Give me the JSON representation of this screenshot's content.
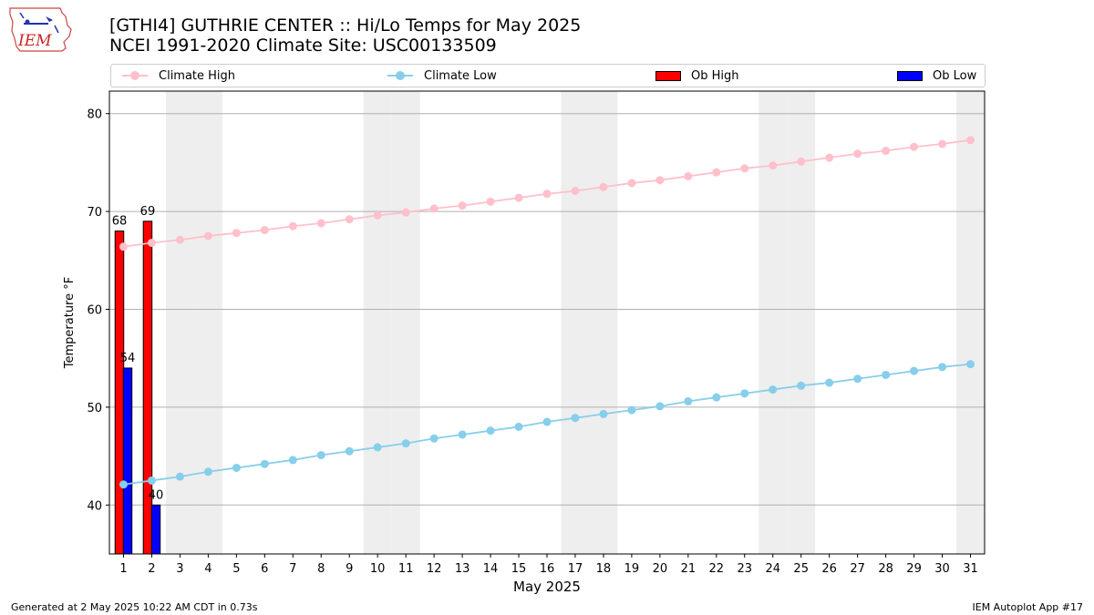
{
  "header": {
    "title_line1": "[GTHI4] GUTHRIE CENTER :: Hi/Lo Temps for May 2025",
    "title_line2": "NCEI 1991-2020 Climate Site: USC00133509"
  },
  "logo": {
    "text": "IEM"
  },
  "footer": {
    "left": "Generated at 2 May 2025 10:22 AM CDT in 0.73s",
    "right": "IEM Autoplot App #17"
  },
  "colors": {
    "climate_high": "#ffc0cb",
    "climate_low": "#87ceeb",
    "ob_high": "#ff0000",
    "ob_low": "#0000ff",
    "weekend_band": "#eeeeee",
    "grid": "#b0b0b0"
  },
  "chart_data": {
    "type": "bar",
    "title": "[GTHI4] GUTHRIE CENTER :: Hi/Lo Temps for May 2025",
    "subtitle": "NCEI 1991-2020 Climate Site: USC00133509",
    "xlabel": "May 2025",
    "ylabel": "Temperature °F",
    "xlim": [
      0.5,
      31.5
    ],
    "ylim": [
      35,
      82.3
    ],
    "yticks": [
      40,
      50,
      60,
      70,
      80
    ],
    "grid": "horizontal",
    "legend_position": "top",
    "days": [
      1,
      2,
      3,
      4,
      5,
      6,
      7,
      8,
      9,
      10,
      11,
      12,
      13,
      14,
      15,
      16,
      17,
      18,
      19,
      20,
      21,
      22,
      23,
      24,
      25,
      26,
      27,
      28,
      29,
      30,
      31
    ],
    "weekend_days": [
      3,
      4,
      10,
      11,
      17,
      18,
      24,
      25,
      31
    ],
    "series": [
      {
        "name": "Climate High",
        "kind": "line",
        "color": "#ffc0cb",
        "values": [
          66.4,
          66.8,
          67.1,
          67.5,
          67.8,
          68.1,
          68.5,
          68.8,
          69.2,
          69.6,
          69.9,
          70.3,
          70.6,
          71.0,
          71.4,
          71.8,
          72.1,
          72.5,
          72.9,
          73.2,
          73.6,
          74.0,
          74.4,
          74.7,
          75.1,
          75.5,
          75.9,
          76.2,
          76.6,
          76.9,
          77.3
        ]
      },
      {
        "name": "Climate Low",
        "kind": "line",
        "color": "#87ceeb",
        "values": [
          42.1,
          42.5,
          42.9,
          43.4,
          43.8,
          44.2,
          44.6,
          45.1,
          45.5,
          45.9,
          46.3,
          46.8,
          47.2,
          47.6,
          48.0,
          48.5,
          48.9,
          49.3,
          49.7,
          50.1,
          50.6,
          51.0,
          51.4,
          51.8,
          52.2,
          52.5,
          52.9,
          53.3,
          53.7,
          54.1,
          54.4
        ]
      },
      {
        "name": "Ob High",
        "kind": "bar",
        "color": "#ff0000",
        "values": [
          68,
          69
        ]
      },
      {
        "name": "Ob Low",
        "kind": "bar",
        "color": "#0000ff",
        "values": [
          54,
          40
        ]
      }
    ],
    "data_labels": [
      "68",
      "69",
      "54",
      "40"
    ]
  }
}
